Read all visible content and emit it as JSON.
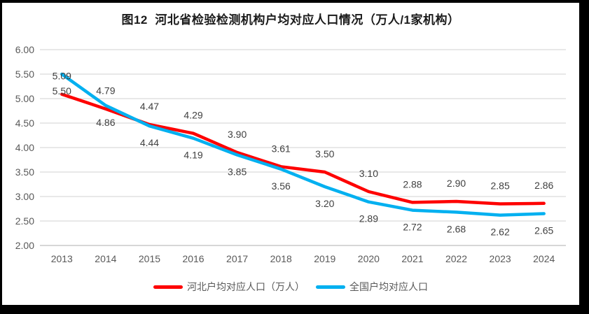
{
  "title": "图12  河北省检验检测机构户均对应人口情况（万人/1家机构）",
  "chart_data": {
    "type": "line",
    "title": "图12  河北省检验检测机构户均对应人口情况（万人/1家机构）",
    "categories": [
      "2013",
      "2014",
      "2015",
      "2016",
      "2017",
      "2018",
      "2019",
      "2020",
      "2021",
      "2022",
      "2023",
      "2024"
    ],
    "series": [
      {
        "name": "河北户均对应人口（万人）",
        "color": "#FE0000",
        "values": [
          5.09,
          4.79,
          4.47,
          4.29,
          3.9,
          3.61,
          3.5,
          3.1,
          2.88,
          2.9,
          2.85,
          2.86
        ],
        "label_position": "above"
      },
      {
        "name": "全国户均对应人口",
        "color": "#00B0F0",
        "values": [
          5.5,
          4.86,
          4.44,
          4.19,
          3.85,
          3.56,
          3.2,
          2.89,
          2.72,
          2.68,
          2.62,
          2.65
        ],
        "label_position": "below"
      }
    ],
    "xlabel": "",
    "ylabel": "",
    "ylim": [
      2.0,
      6.0
    ],
    "y_ticks": [
      "6.00",
      "5.50",
      "5.00",
      "4.50",
      "4.00",
      "3.50",
      "3.00",
      "2.50",
      "2.00"
    ],
    "grid": true,
    "data_labels": true,
    "legend_position": "bottom"
  },
  "styles": {
    "frame_color": "#000000",
    "background": "#FFFFFF",
    "gridline_color": "#D9D9D9",
    "axis_line_color": "#BFBFBF",
    "tick_label_color": "#595959",
    "data_label_color": "#404040",
    "title_color": "#1A1A1A"
  }
}
